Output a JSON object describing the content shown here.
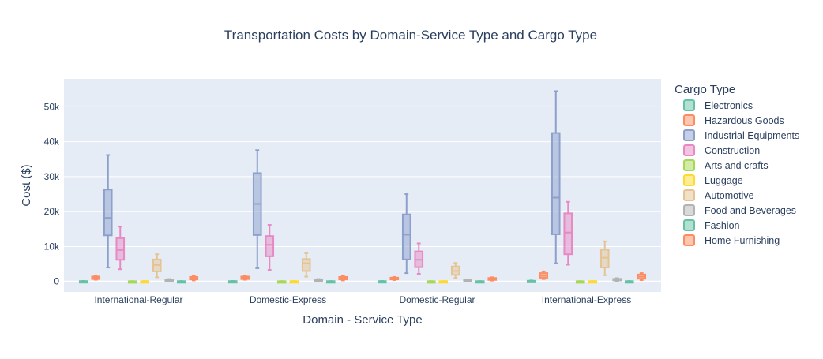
{
  "chart_data": {
    "type": "box",
    "title": "Transportation Costs by Domain-Service Type and Cargo Type",
    "xlabel": "Domain - Service Type",
    "ylabel": "Cost ($)",
    "ylim": [
      -3000,
      58000
    ],
    "yticks": [
      0,
      10000,
      20000,
      30000,
      40000,
      50000
    ],
    "ytick_labels": [
      "0",
      "10k",
      "20k",
      "30k",
      "40k",
      "50k"
    ],
    "grid": true,
    "legend": {
      "title": "Cargo Type",
      "placement": "right"
    },
    "categories": [
      "International-Regular",
      "Domestic-Express",
      "Domestic-Regular",
      "International-Express"
    ],
    "series": [
      {
        "name": "Electronics",
        "color": "#66c2a5",
        "boxes": [
          {
            "min": 0,
            "q1": 30,
            "median": 60,
            "q3": 110,
            "max": 160
          },
          {
            "min": 0,
            "q1": 30,
            "median": 60,
            "q3": 110,
            "max": 160
          },
          {
            "min": 0,
            "q1": 30,
            "median": 60,
            "q3": 110,
            "max": 160
          },
          {
            "min": 0,
            "q1": 60,
            "median": 120,
            "q3": 200,
            "max": 300
          }
        ]
      },
      {
        "name": "Hazardous Goods",
        "color": "#fc8d62",
        "boxes": [
          {
            "min": 500,
            "q1": 700,
            "median": 1000,
            "q3": 1400,
            "max": 1700
          },
          {
            "min": 500,
            "q1": 700,
            "median": 1000,
            "q3": 1400,
            "max": 1700
          },
          {
            "min": 400,
            "q1": 600,
            "median": 800,
            "q3": 1100,
            "max": 1300
          },
          {
            "min": 700,
            "q1": 1100,
            "median": 1700,
            "q3": 2400,
            "max": 2900
          }
        ]
      },
      {
        "name": "Industrial Equipments",
        "color": "#8da0cb",
        "boxes": [
          {
            "min": 4000,
            "q1": 13200,
            "median": 18200,
            "q3": 26300,
            "max": 36200
          },
          {
            "min": 3800,
            "q1": 13300,
            "median": 22200,
            "q3": 31000,
            "max": 37600
          },
          {
            "min": 2400,
            "q1": 6300,
            "median": 13400,
            "q3": 19200,
            "max": 25000
          },
          {
            "min": 5200,
            "q1": 13500,
            "median": 24000,
            "q3": 42500,
            "max": 54500
          }
        ]
      },
      {
        "name": "Construction",
        "color": "#e78ac3",
        "boxes": [
          {
            "min": 3500,
            "q1": 6200,
            "median": 9000,
            "q3": 12400,
            "max": 15700
          },
          {
            "min": 3300,
            "q1": 7200,
            "median": 10500,
            "q3": 13000,
            "max": 16200
          },
          {
            "min": 2200,
            "q1": 4100,
            "median": 6200,
            "q3": 8600,
            "max": 10900
          },
          {
            "min": 4800,
            "q1": 7800,
            "median": 14000,
            "q3": 19500,
            "max": 22800
          }
        ]
      },
      {
        "name": "Arts and crafts",
        "color": "#a6d854",
        "boxes": [
          {
            "min": 0,
            "q1": 20,
            "median": 40,
            "q3": 70,
            "max": 110
          },
          {
            "min": 0,
            "q1": 20,
            "median": 40,
            "q3": 70,
            "max": 110
          },
          {
            "min": 0,
            "q1": 20,
            "median": 40,
            "q3": 70,
            "max": 110
          },
          {
            "min": 0,
            "q1": 20,
            "median": 40,
            "q3": 70,
            "max": 110
          }
        ]
      },
      {
        "name": "Luggage",
        "color": "#ffd92f",
        "boxes": [
          {
            "min": 0,
            "q1": 30,
            "median": 50,
            "q3": 90,
            "max": 130
          },
          {
            "min": 0,
            "q1": 30,
            "median": 50,
            "q3": 90,
            "max": 130
          },
          {
            "min": 0,
            "q1": 30,
            "median": 50,
            "q3": 90,
            "max": 130
          },
          {
            "min": 0,
            "q1": 30,
            "median": 50,
            "q3": 90,
            "max": 130
          }
        ]
      },
      {
        "name": "Automotive",
        "color": "#e5c494",
        "boxes": [
          {
            "min": 1200,
            "q1": 2900,
            "median": 4700,
            "q3": 6300,
            "max": 7800
          },
          {
            "min": 1400,
            "q1": 3000,
            "median": 5200,
            "q3": 6400,
            "max": 8100
          },
          {
            "min": 1000,
            "q1": 1900,
            "median": 3000,
            "q3": 4300,
            "max": 5300
          },
          {
            "min": 1800,
            "q1": 4000,
            "median": 6800,
            "q3": 9100,
            "max": 11500
          }
        ]
      },
      {
        "name": "Food and Beverages",
        "color": "#b3b3b3",
        "boxes": [
          {
            "min": 100,
            "q1": 250,
            "median": 400,
            "q3": 550,
            "max": 700
          },
          {
            "min": 100,
            "q1": 250,
            "median": 400,
            "q3": 550,
            "max": 700
          },
          {
            "min": 80,
            "q1": 200,
            "median": 300,
            "q3": 450,
            "max": 600
          },
          {
            "min": 150,
            "q1": 350,
            "median": 550,
            "q3": 750,
            "max": 950
          }
        ]
      },
      {
        "name": "Fashion",
        "color": "#66c2a5",
        "boxes": [
          {
            "min": 0,
            "q1": 20,
            "median": 50,
            "q3": 90,
            "max": 130
          },
          {
            "min": 0,
            "q1": 20,
            "median": 50,
            "q3": 90,
            "max": 130
          },
          {
            "min": 0,
            "q1": 20,
            "median": 50,
            "q3": 90,
            "max": 130
          },
          {
            "min": 0,
            "q1": 20,
            "median": 50,
            "q3": 90,
            "max": 130
          }
        ]
      },
      {
        "name": "Home Furnishing",
        "color": "#fc8d62",
        "boxes": [
          {
            "min": 300,
            "q1": 600,
            "median": 900,
            "q3": 1300,
            "max": 1600
          },
          {
            "min": 300,
            "q1": 600,
            "median": 900,
            "q3": 1300,
            "max": 1600
          },
          {
            "min": 250,
            "q1": 450,
            "median": 700,
            "q3": 1000,
            "max": 1200
          },
          {
            "min": 400,
            "q1": 800,
            "median": 1400,
            "q3": 2000,
            "max": 2400
          }
        ]
      }
    ]
  }
}
